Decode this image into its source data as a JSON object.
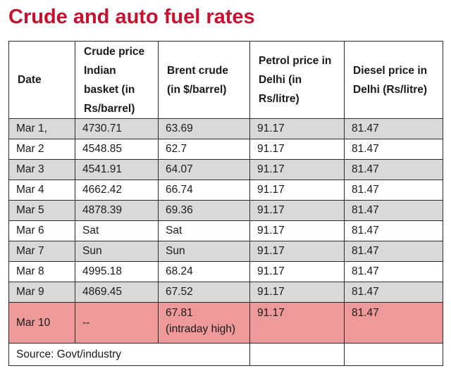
{
  "title": "Crude and auto fuel rates",
  "headers": [
    "Date",
    "Crude price Indian basket (in Rs/barrel)",
    "Brent crude (in $/barrel)",
    "Petrol price in Delhi (in Rs/litre)",
    "Diesel price in Delhi (Rs/litre)"
  ],
  "rows": [
    {
      "date": "Mar 1,",
      "crude": "4730.71",
      "brent": "63.69",
      "petrol": "91.17",
      "diesel": "81.47"
    },
    {
      "date": "Mar 2",
      "crude": "4548.85",
      "brent": "62.7",
      "petrol": "91.17",
      "diesel": "81.47"
    },
    {
      "date": "Mar 3",
      "crude": "4541.91",
      "brent": "64.07",
      "petrol": "91.17",
      "diesel": "81.47"
    },
    {
      "date": "Mar 4",
      "crude": "4662.42",
      "brent": "66.74",
      "petrol": "91.17",
      "diesel": "81.47"
    },
    {
      "date": "Mar 5",
      "crude": "4878.39",
      "brent": "69.36",
      "petrol": "91.17",
      "diesel": "81.47"
    },
    {
      "date": "Mar 6",
      "crude": "Sat",
      "brent": "Sat",
      "petrol": "91.17",
      "diesel": "81.47"
    },
    {
      "date": "Mar 7",
      "crude": "Sun",
      "brent": "Sun",
      "petrol": "91.17",
      "diesel": "81.47"
    },
    {
      "date": "Mar 8",
      "crude": "4995.18",
      "brent": "68.24",
      "petrol": "91.17",
      "diesel": "81.47"
    },
    {
      "date": "Mar 9",
      "crude": "4869.45",
      "brent": "67.52",
      "petrol": "91.17",
      "diesel": "81.47"
    }
  ],
  "highlight_row": {
    "date": "Mar 10",
    "crude": "--",
    "brent": "67.81",
    "brent_note": "(intraday high)",
    "petrol": "91.17",
    "diesel": "81.47"
  },
  "source": "Source: Govt/industry",
  "colors": {
    "title": "#c8102e",
    "alt_row": "#d9d9d9",
    "highlight_row": "#ee9a9a"
  }
}
